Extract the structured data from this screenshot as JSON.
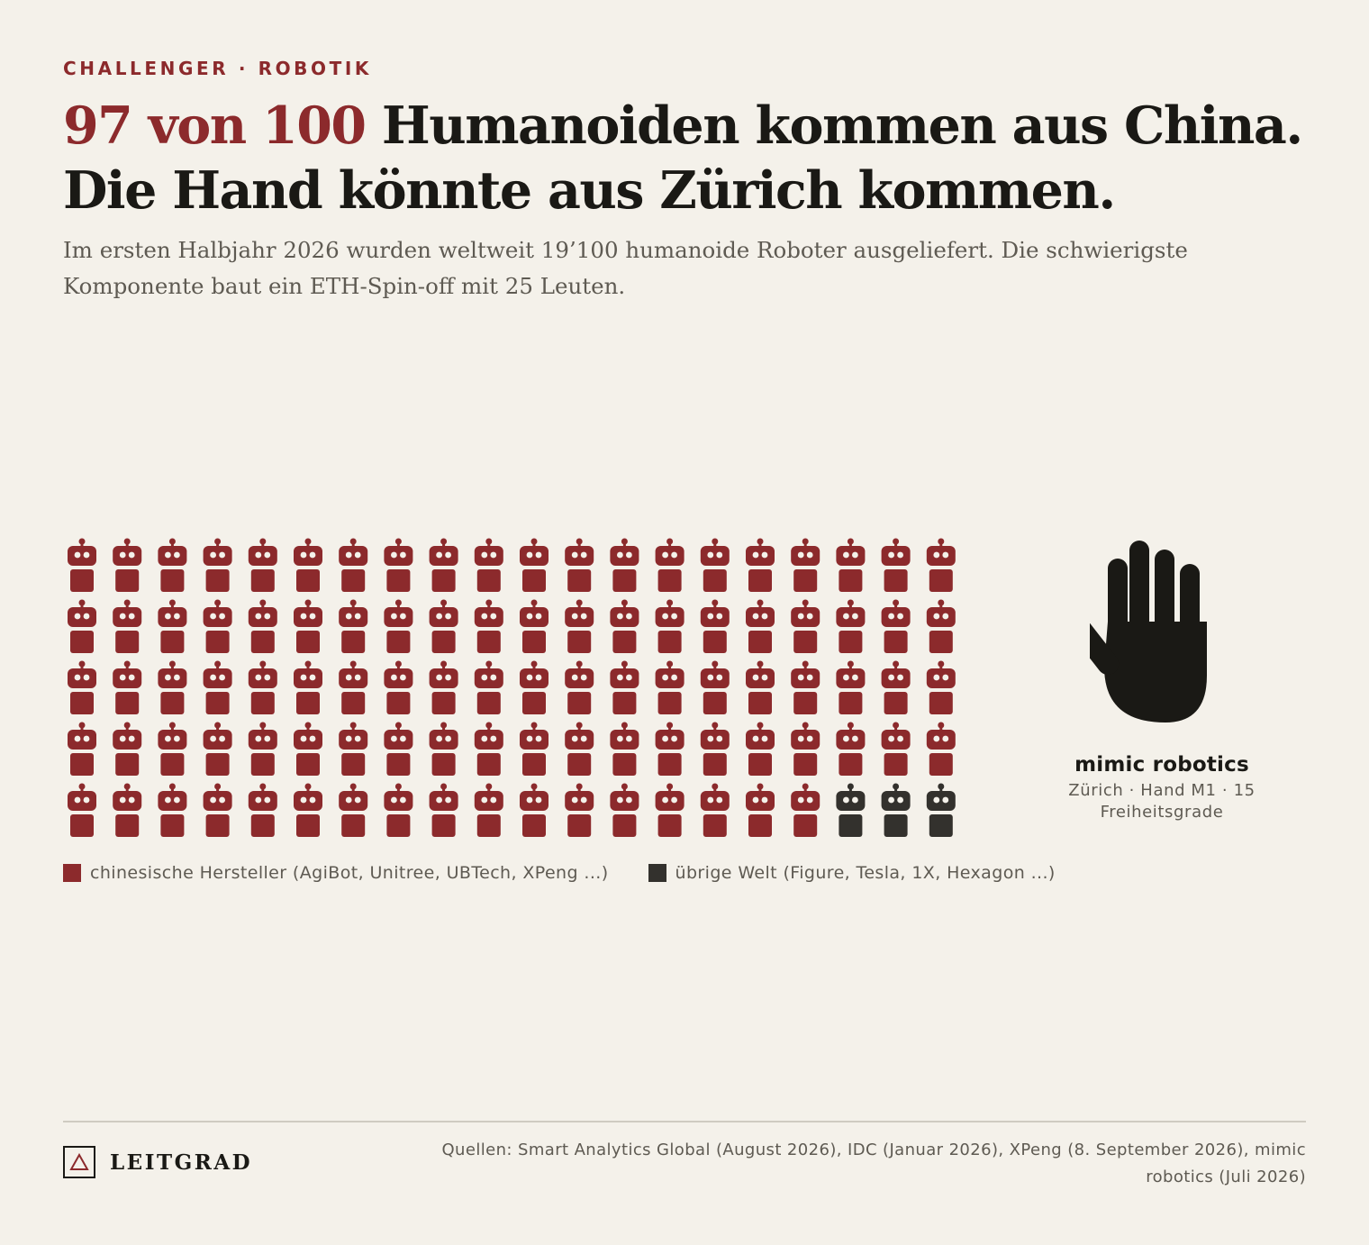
{
  "header": {
    "kicker": "CHALLENGER · ROBOTIK",
    "headline_accent": "97 von 100",
    "headline_rest": " Humanoiden kommen aus China. Die Hand könnte aus Zürich kommen.",
    "subtitle": "Im ersten Halbjahr 2026 wurden weltweit 19’100 humanoide Roboter ausgeliefert. Die schwierigste Komponente baut ein ETH-Spin-off mit 25 Leuten."
  },
  "chart_data": {
    "type": "waffle",
    "total": 100,
    "rows": 5,
    "columns": 20,
    "series": [
      {
        "name": "chinesische Hersteller (AgiBot, Unitree, UBTech, XPeng ...)",
        "value": 97,
        "color": "#8c2a2c"
      },
      {
        "name": "übrige Welt (Figure, Tesla, 1X, Hexagon ...)",
        "value": 3,
        "color": "#33312d"
      }
    ]
  },
  "hand": {
    "icon": "hand-icon",
    "name": "mimic robotics",
    "description": "Zürich · Hand M1 · 15 Freiheitsgrade",
    "color": "#1a1915"
  },
  "footer": {
    "logo_icon": "triangle-logo-icon",
    "brand": "LEITGRAD",
    "sources": "Quellen: Smart Analytics Global (August 2026), IDC (Januar 2026), XPeng (8. September 2026), mimic robotics (Juli 2026)"
  }
}
